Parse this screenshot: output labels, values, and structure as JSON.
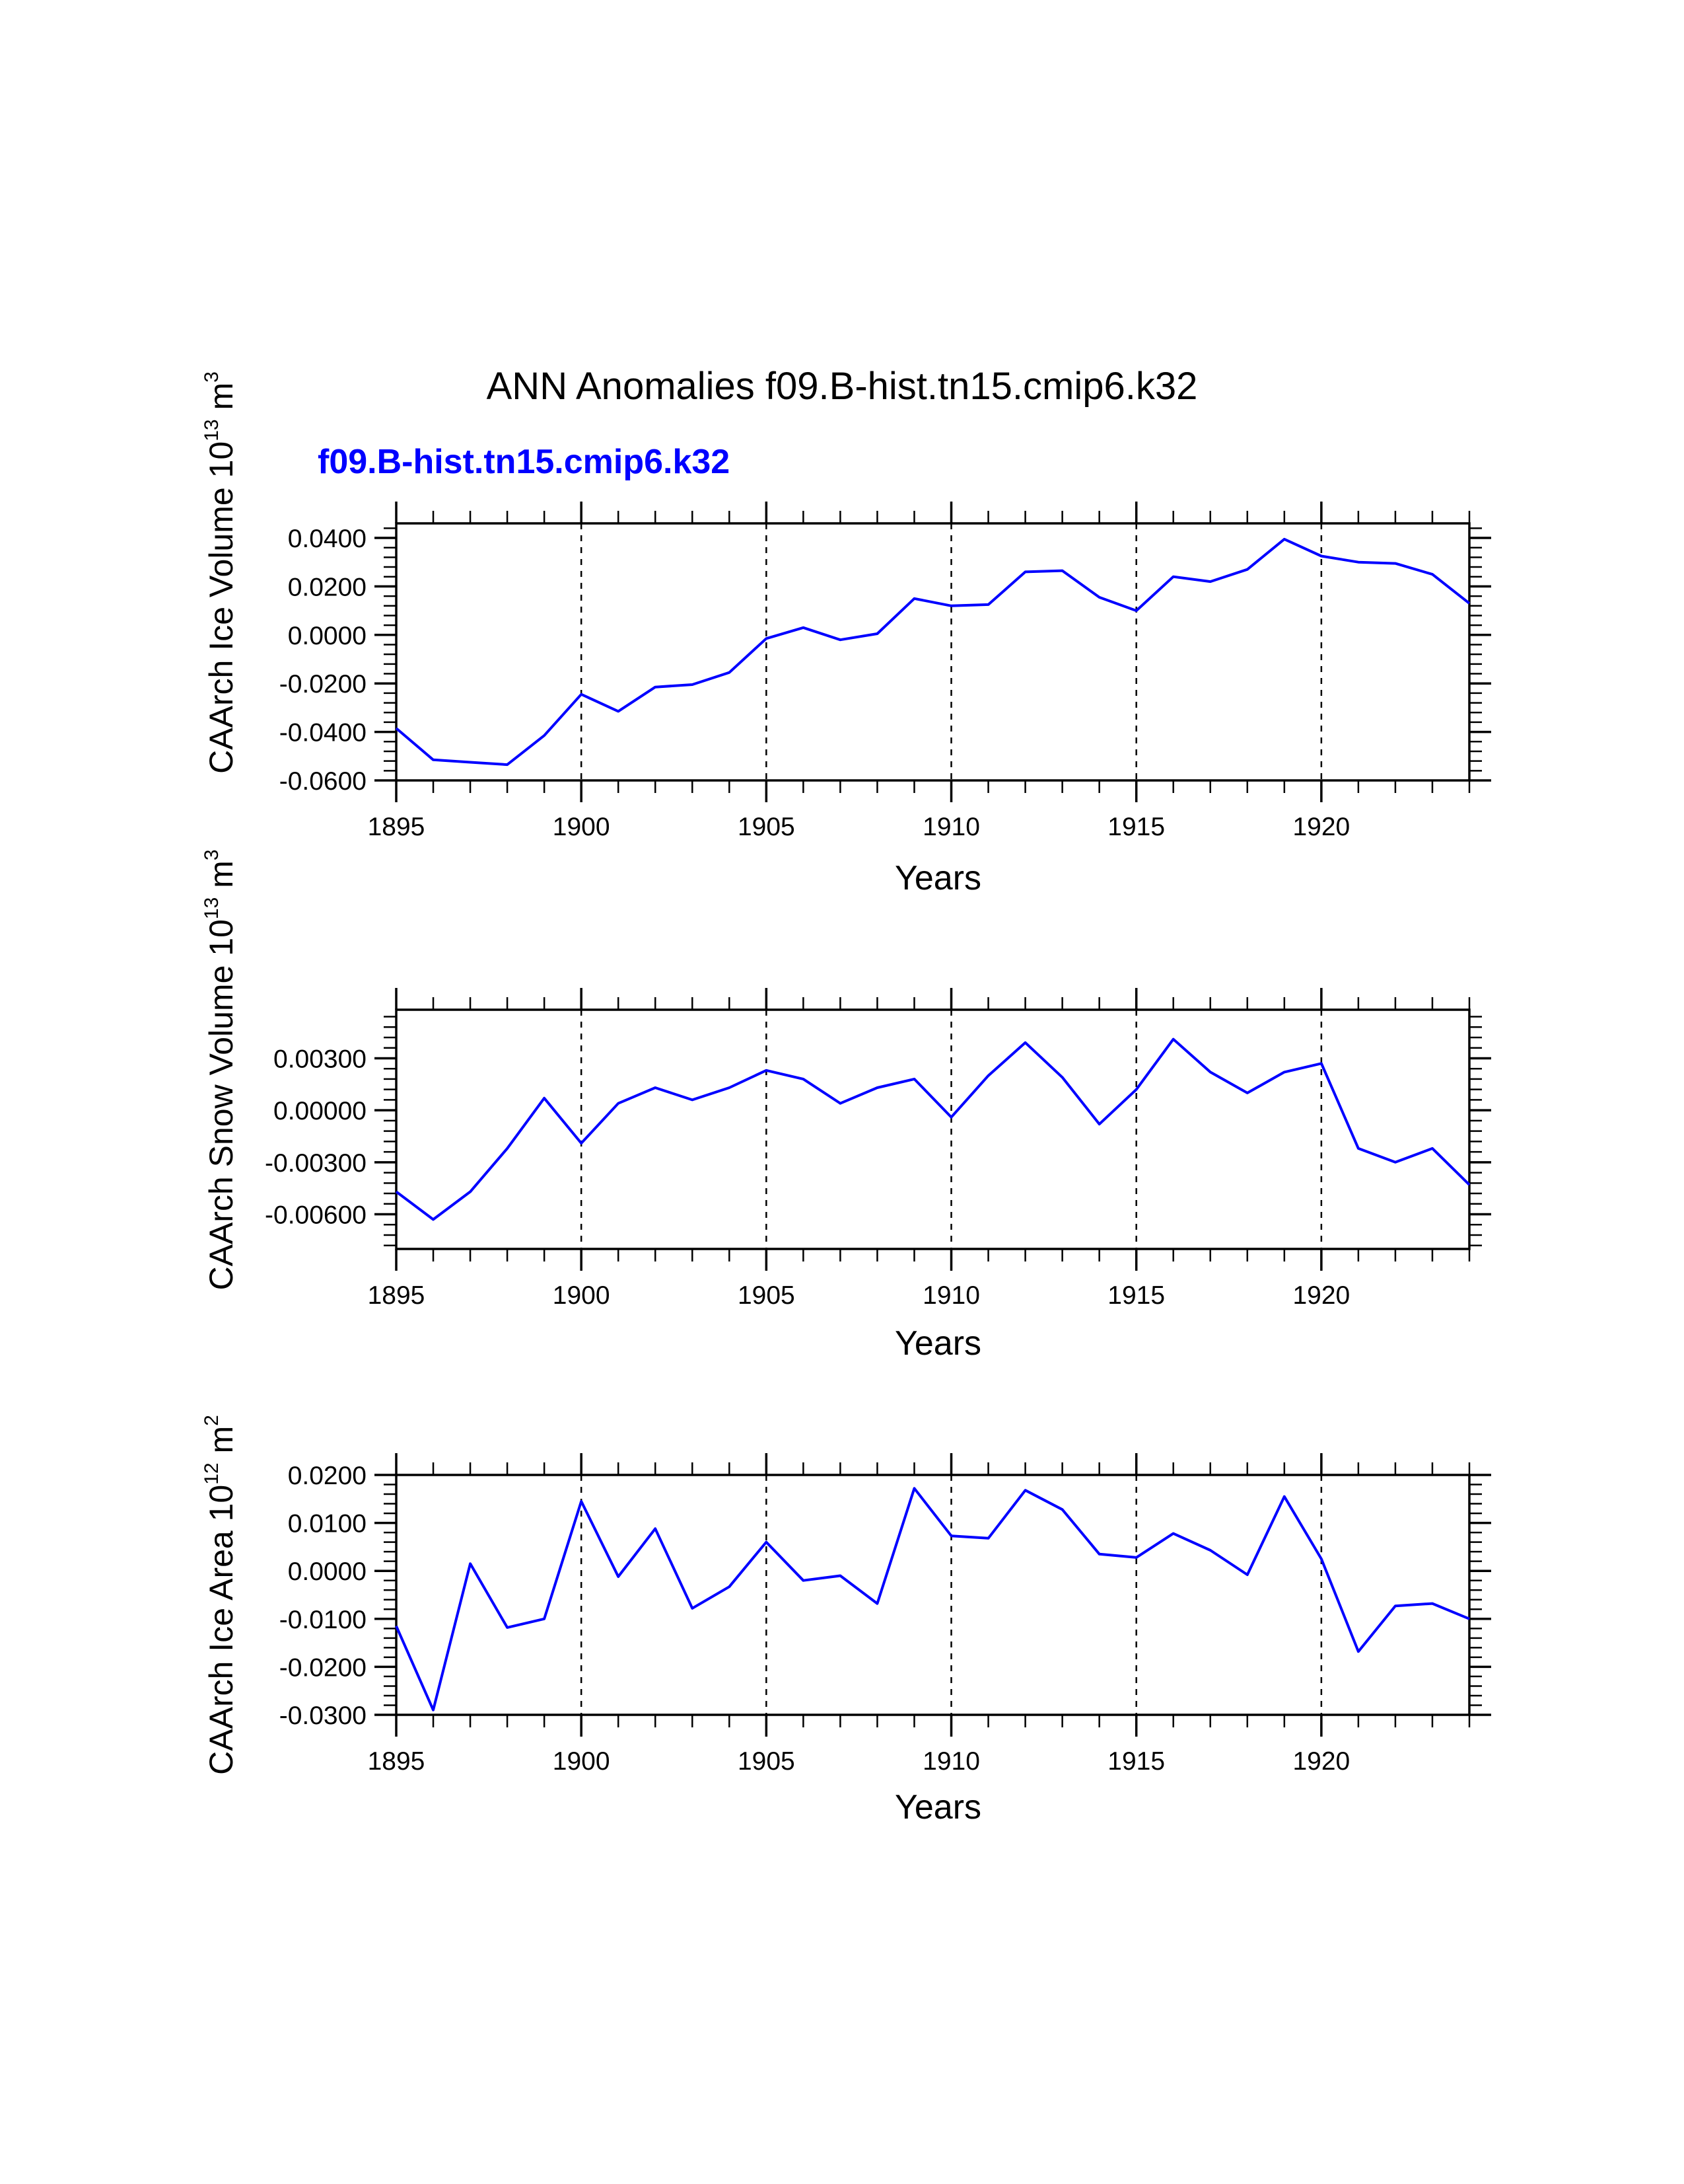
{
  "title": "ANN Anomalies f09.B-hist.tn15.cmip6.k32",
  "subtitle": "f09.B-hist.tn15.cmip6.k32",
  "colors": {
    "series": "#0000ff",
    "axes": "#000000",
    "background": "#ffffff"
  },
  "chart_data": [
    {
      "type": "line",
      "ylabel": "CAArch Ice Volume",
      "yunits": {
        "base": "10",
        "exp": "13",
        "unit": "m",
        "unit_exp": "3"
      },
      "xlabel": "Years",
      "xlim": [
        1895,
        1924
      ],
      "ylim": [
        -0.06,
        0.046
      ],
      "yticks": [
        0.04,
        0.02,
        0.0,
        -0.02,
        -0.04,
        -0.06
      ],
      "ytick_labels": [
        "0.0400",
        "0.0200",
        "0.0000",
        "-0.0200",
        "-0.0400",
        "-0.0600"
      ],
      "xticks": [
        1895,
        1900,
        1905,
        1910,
        1915,
        1920
      ],
      "xtick_labels": [
        "1895",
        "1900",
        "1905",
        "1910",
        "1915",
        "1920"
      ],
      "gridlines_x": [
        1900,
        1905,
        1910,
        1915,
        1920
      ],
      "series": [
        {
          "name": "f09.B-hist.tn15.cmip6.k32",
          "x": [
            1895,
            1896,
            1897,
            1898,
            1899,
            1900,
            1901,
            1902,
            1903,
            1904,
            1905,
            1906,
            1907,
            1908,
            1909,
            1910,
            1911,
            1912,
            1913,
            1914,
            1915,
            1916,
            1917,
            1918,
            1919,
            1920,
            1921,
            1922,
            1923,
            1924
          ],
          "values": [
            -0.0385,
            -0.0515,
            -0.0525,
            -0.0535,
            -0.0415,
            -0.0245,
            -0.0315,
            -0.0215,
            -0.0205,
            -0.0155,
            -0.0015,
            0.003,
            -0.002,
            0.0005,
            0.015,
            0.012,
            0.0125,
            0.026,
            0.0265,
            0.0155,
            0.01,
            0.024,
            0.022,
            0.027,
            0.0395,
            0.0325,
            0.03,
            0.0295,
            0.025,
            0.013
          ]
        }
      ]
    },
    {
      "type": "line",
      "ylabel": "CAArch Snow Volume",
      "yunits": {
        "base": "10",
        "exp": "13",
        "unit": "m",
        "unit_exp": "3"
      },
      "xlabel": "Years",
      "xlim": [
        1895,
        1924
      ],
      "ylim": [
        -0.008,
        0.0058
      ],
      "yticks": [
        0.003,
        0.0,
        -0.003,
        -0.006
      ],
      "ytick_labels": [
        "0.00300",
        "0.00000",
        "-0.00300",
        "-0.00600"
      ],
      "xticks": [
        1895,
        1900,
        1905,
        1910,
        1915,
        1920
      ],
      "xtick_labels": [
        "1895",
        "1900",
        "1905",
        "1910",
        "1915",
        "1920"
      ],
      "gridlines_x": [
        1900,
        1905,
        1910,
        1915,
        1920
      ],
      "series": [
        {
          "name": "f09.B-hist.tn15.cmip6.k32",
          "x": [
            1895,
            1896,
            1897,
            1898,
            1899,
            1900,
            1901,
            1902,
            1903,
            1904,
            1905,
            1906,
            1907,
            1908,
            1909,
            1910,
            1911,
            1912,
            1913,
            1914,
            1915,
            1916,
            1917,
            1918,
            1919,
            1920,
            1921,
            1922,
            1923,
            1924
          ],
          "values": [
            -0.0047,
            -0.0063,
            -0.0047,
            -0.0022,
            0.0007,
            -0.0019,
            0.0004,
            0.0013,
            0.0006,
            0.0013,
            0.0023,
            0.0018,
            0.0004,
            0.0013,
            0.0018,
            -0.0004,
            0.002,
            0.0039,
            0.0019,
            -0.0008,
            0.0012,
            0.0041,
            0.0022,
            0.001,
            0.0022,
            0.0027,
            -0.0022,
            -0.003,
            -0.0022,
            -0.0043
          ]
        }
      ]
    },
    {
      "type": "line",
      "ylabel": "CAArch Ice Area",
      "yunits": {
        "base": "10",
        "exp": "12",
        "unit": "m",
        "unit_exp": "2"
      },
      "xlabel": "Years",
      "xlim": [
        1895,
        1924
      ],
      "ylim": [
        -0.03,
        0.02
      ],
      "yticks": [
        0.02,
        0.01,
        0.0,
        -0.01,
        -0.02,
        -0.03
      ],
      "ytick_labels": [
        "0.0200",
        "0.0100",
        "0.0000",
        "-0.0100",
        "-0.0200",
        "-0.0300"
      ],
      "xticks": [
        1895,
        1900,
        1905,
        1910,
        1915,
        1920
      ],
      "xtick_labels": [
        "1895",
        "1900",
        "1905",
        "1910",
        "1915",
        "1920"
      ],
      "gridlines_x": [
        1900,
        1905,
        1910,
        1915,
        1920
      ],
      "series": [
        {
          "name": "f09.B-hist.tn15.cmip6.k32",
          "x": [
            1895,
            1896,
            1897,
            1898,
            1899,
            1900,
            1901,
            1902,
            1903,
            1904,
            1905,
            1906,
            1907,
            1908,
            1909,
            1910,
            1911,
            1912,
            1913,
            1914,
            1915,
            1916,
            1917,
            1918,
            1919,
            1920,
            1921,
            1922,
            1923,
            1924
          ],
          "values": [
            -0.0115,
            -0.029,
            0.0015,
            -0.0118,
            -0.01,
            0.0145,
            -0.0012,
            0.0088,
            -0.0078,
            -0.0033,
            0.006,
            -0.002,
            -0.001,
            -0.0068,
            0.0172,
            0.0073,
            0.0068,
            0.0168,
            0.0128,
            0.0035,
            0.0028,
            0.0078,
            0.0043,
            -0.0008,
            0.0155,
            0.0025,
            -0.0168,
            -0.0073,
            -0.0068,
            -0.01
          ]
        }
      ]
    }
  ]
}
